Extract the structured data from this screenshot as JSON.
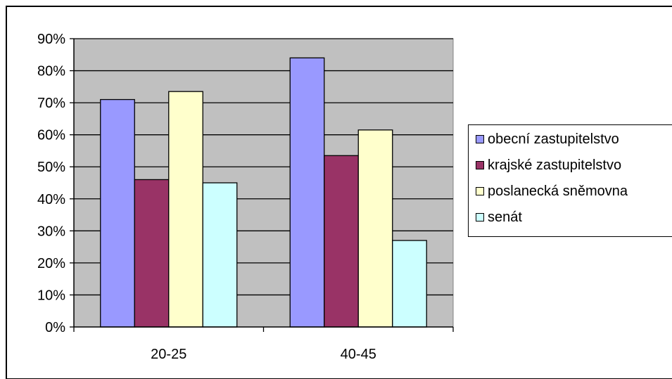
{
  "chart_data": {
    "type": "bar",
    "categories": [
      "20-25",
      "40-45"
    ],
    "series": [
      {
        "name": "obecní zastupitelstvo",
        "values": [
          71,
          84
        ]
      },
      {
        "name": "krajské zastupitelstvo",
        "values": [
          46,
          53.5
        ]
      },
      {
        "name": "poslanecká sněmovna",
        "values": [
          73.5,
          61.5
        ]
      },
      {
        "name": "senát",
        "values": [
          45,
          27
        ]
      }
    ],
    "yticks": [
      "0%",
      "10%",
      "20%",
      "30%",
      "40%",
      "50%",
      "60%",
      "70%",
      "80%",
      "90%"
    ],
    "ylim": [
      0,
      90
    ],
    "ystep": 10,
    "grid": true,
    "legend_position": "right",
    "colors": {
      "series": [
        "#9999FF",
        "#993366",
        "#FFFFCC",
        "#CCFFFF"
      ],
      "plot_background": "#C0C0C0",
      "gridline": "#000000"
    }
  }
}
